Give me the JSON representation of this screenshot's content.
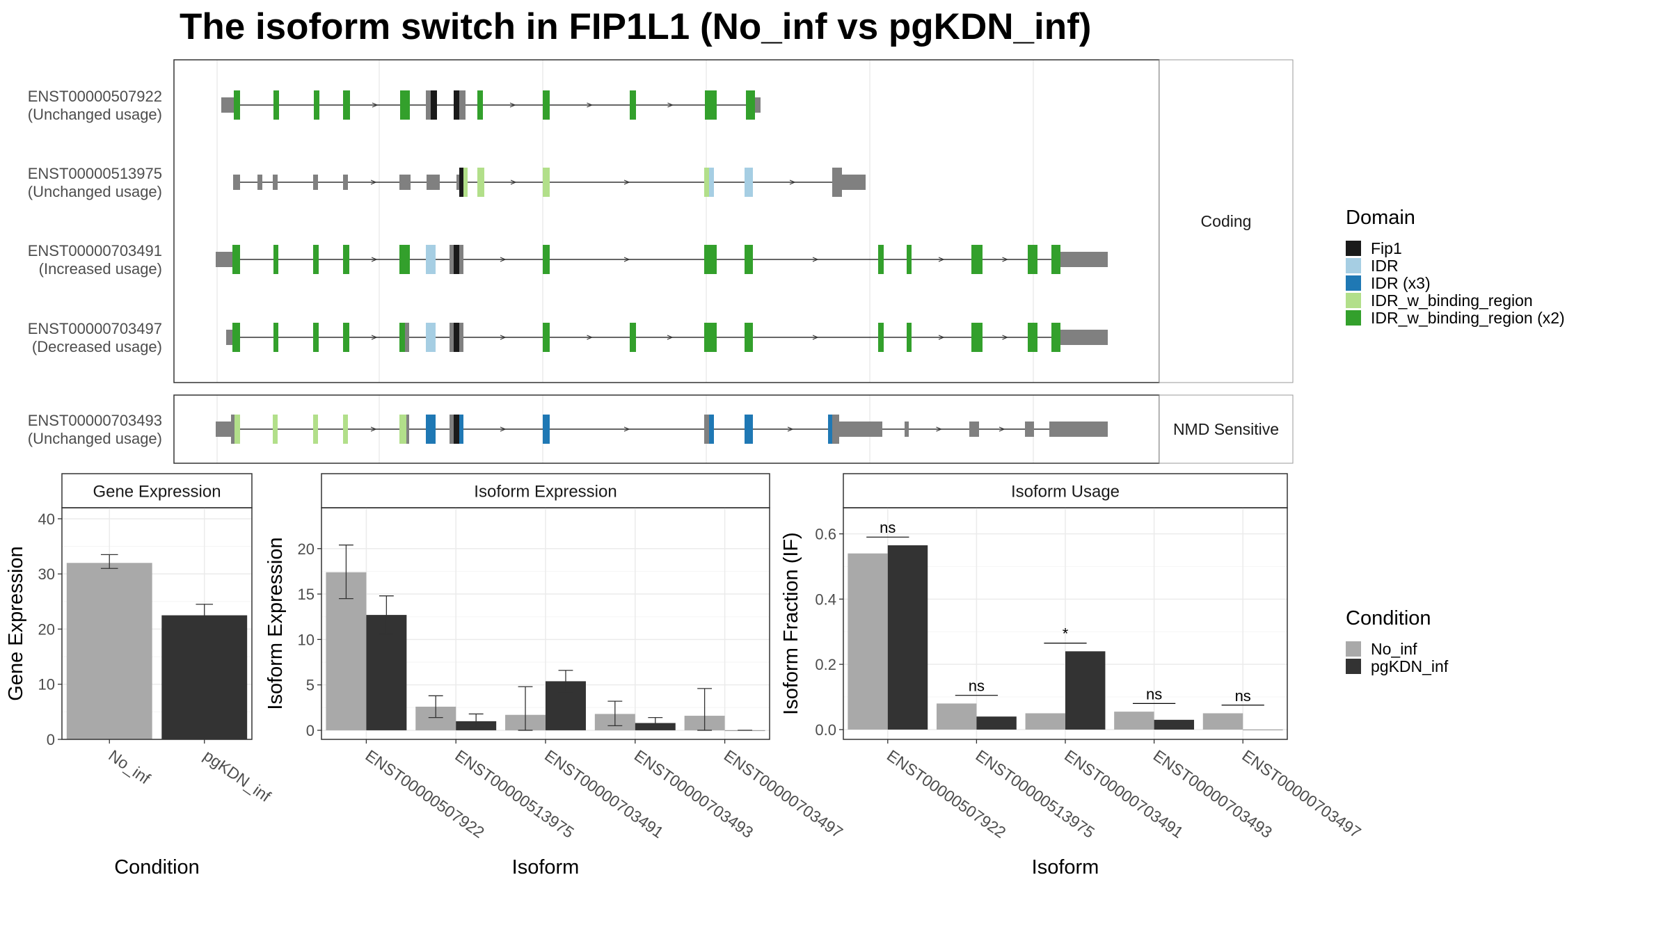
{
  "title": "The isoform switch in FIP1L1 (No_inf vs pgKDN_inf)",
  "colors": {
    "grey_exon": "#808080",
    "Fip1": "#1a1a1a",
    "IDR": "#a6cee3",
    "IDR (x3)": "#1f78b4",
    "IDR_w_binding_region": "#b2df8a",
    "IDR_w_binding_region (x2)": "#33a02c",
    "No_inf": "#a9a9a9",
    "pgKDN_inf": "#333333"
  },
  "structure": {
    "facets": [
      "Coding",
      "NMD Sensitive"
    ],
    "isoforms": [
      {
        "id": "ENST00000507922",
        "usage": "(Unchanged usage)",
        "facet": "Coding"
      },
      {
        "id": "ENST00000513975",
        "usage": "(Unchanged usage)",
        "facet": "Coding"
      },
      {
        "id": "ENST00000703491",
        "usage": "(Increased usage)",
        "facet": "Coding"
      },
      {
        "id": "ENST00000703497",
        "usage": "(Decreased usage)",
        "facet": "Coding"
      },
      {
        "id": "ENST00000703493",
        "usage": "(Unchanged usage)",
        "facet": "NMD Sensitive"
      }
    ]
  },
  "legend_domain": {
    "title": "Domain",
    "items": [
      "Fip1",
      "IDR",
      "IDR (x3)",
      "IDR_w_binding_region",
      "IDR_w_binding_region (x2)"
    ]
  },
  "legend_condition": {
    "title": "Condition",
    "items": [
      "No_inf",
      "pgKDN_inf"
    ]
  },
  "chart_data": [
    {
      "type": "bar",
      "title": "Gene Expression",
      "xlabel": "Condition",
      "ylabel": "Gene Expression",
      "ylim": [
        0,
        42
      ],
      "yticks": [
        0,
        10,
        20,
        30,
        40
      ],
      "categories": [
        "No_inf",
        "pgKDN_inf"
      ],
      "values": [
        32.0,
        22.5
      ],
      "errors": [
        [
          31.0,
          33.5
        ],
        [
          20.7,
          24.5
        ]
      ]
    },
    {
      "type": "bar",
      "title": "Isoform Expression",
      "xlabel": "Isoform",
      "ylabel": "Isoform Expression",
      "ylim": [
        -1,
        24.5
      ],
      "yticks": [
        0,
        5,
        10,
        15,
        20
      ],
      "categories": [
        "ENST00000507922",
        "ENST00000513975",
        "ENST00000703491",
        "ENST00000703493",
        "ENST00000703497"
      ],
      "series": [
        {
          "name": "No_inf",
          "values": [
            17.4,
            2.6,
            1.7,
            1.8,
            1.6
          ],
          "errors": [
            [
              14.5,
              20.4
            ],
            [
              1.4,
              3.8
            ],
            [
              0.0,
              4.8
            ],
            [
              0.5,
              3.2
            ],
            [
              0.0,
              4.6
            ]
          ]
        },
        {
          "name": "pgKDN_inf",
          "values": [
            12.7,
            1.0,
            5.4,
            0.8,
            0.0
          ],
          "errors": [
            [
              10.6,
              14.8
            ],
            [
              0.3,
              1.8
            ],
            [
              4.2,
              6.6
            ],
            [
              0.3,
              1.4
            ],
            [
              0.0,
              0.0
            ]
          ]
        }
      ]
    },
    {
      "type": "bar",
      "title": "Isoform Usage",
      "xlabel": "Isoform",
      "ylabel": "Isoform Fraction (IF)",
      "ylim": [
        -0.03,
        0.68
      ],
      "yticks": [
        0.0,
        0.2,
        0.4,
        0.6
      ],
      "categories": [
        "ENST00000507922",
        "ENST00000513975",
        "ENST00000703491",
        "ENST00000703493",
        "ENST00000703497"
      ],
      "series": [
        {
          "name": "No_inf",
          "values": [
            0.54,
            0.08,
            0.05,
            0.055,
            0.05
          ]
        },
        {
          "name": "pgKDN_inf",
          "values": [
            0.565,
            0.04,
            0.24,
            0.03,
            0.0
          ]
        }
      ],
      "significance": [
        "ns",
        "ns",
        "*",
        "ns",
        "ns"
      ]
    }
  ]
}
